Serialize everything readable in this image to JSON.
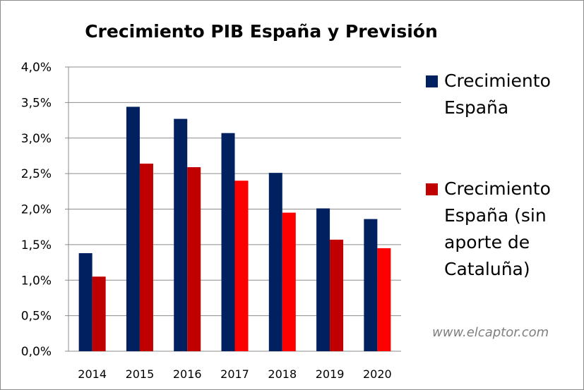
{
  "chart_data": {
    "type": "bar",
    "title": "Crecimiento PIB España y  Previsión",
    "categories": [
      "2014",
      "2015",
      "2016",
      "2017",
      "2018",
      "2019",
      "2020"
    ],
    "series": [
      {
        "name": "Crecimiento España",
        "values": [
          1.38,
          3.44,
          3.27,
          3.07,
          2.51,
          2.01,
          1.86
        ],
        "color": "#002060"
      },
      {
        "name": "Crecimiento España (sin aporte de Cataluña)",
        "values": [
          1.05,
          2.64,
          2.59,
          2.4,
          1.95,
          1.57,
          1.45
        ],
        "colors": [
          "#c00000",
          "#c00000",
          "#c00000",
          "#ff0000",
          "#ff0000",
          "#c00000",
          "#ff0000"
        ]
      }
    ],
    "ylim": [
      0,
      4
    ],
    "yticks": [
      0,
      0.5,
      1.0,
      1.5,
      2.0,
      2.5,
      3.0,
      3.5,
      4.0
    ],
    "ytick_labels": [
      "0,0%",
      "0,5%",
      "1,0%",
      "1,5%",
      "2,0%",
      "2,5%",
      "3,0%",
      "3,5%",
      "4,0%"
    ],
    "xlabel": "",
    "ylabel": "",
    "grid": true,
    "legend_position": "right"
  },
  "legend": {
    "items": [
      {
        "lines": [
          "Crecimiento",
          "España"
        ],
        "color": "#002060"
      },
      {
        "lines": [
          "Crecimiento",
          "España (sin",
          "aporte de",
          "Cataluña)"
        ],
        "color": "#c00000"
      }
    ]
  },
  "watermark": "www.elcaptor.com"
}
